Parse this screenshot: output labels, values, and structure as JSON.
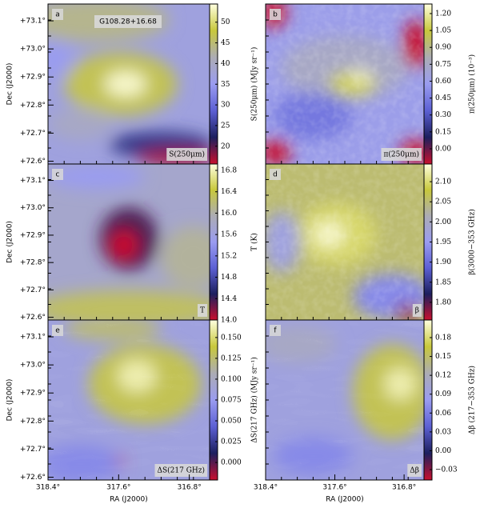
{
  "chart_data": [
    {
      "type": "heatmap",
      "letter": "a",
      "annotation": "G108.28+16.68",
      "box_label": "S(250μm)",
      "colors": [
        "#c8102e",
        "#1c1f5e",
        "#5c60d4",
        "#9a9cf0",
        "#acacb4",
        "#c8c83c",
        "#ffffe0"
      ],
      "colorbar": {
        "label": "S(250μm) (MJy sr⁻¹)",
        "lim": [
          15.7,
          54.4
        ],
        "ticks": [
          20,
          25,
          30,
          35,
          40,
          45,
          50
        ]
      },
      "yaxis": {
        "label": "Dec (J2000)",
        "lim": [
          72.59,
          73.16
        ],
        "ticks": [
          {
            "value": 72.6,
            "label": "+72.6°"
          },
          {
            "value": 72.7,
            "label": "+72.7°"
          },
          {
            "value": 72.8,
            "label": "+72.8°"
          },
          {
            "value": 72.9,
            "label": "+72.9°"
          },
          {
            "value": 73.0,
            "label": "+73.0°"
          },
          {
            "value": 73.1,
            "label": "+73.1°"
          }
        ]
      }
    },
    {
      "type": "heatmap",
      "letter": "b",
      "box_label": "π(250μm)",
      "colors": [
        "#c8102e",
        "#1c1f5e",
        "#5c60d4",
        "#9a9cf0",
        "#acacb4",
        "#c8c83c",
        "#ffffe0"
      ],
      "colorbar": {
        "label": "π(250μm) (10⁻³)",
        "lim": [
          -0.135,
          1.285
        ],
        "ticks": [
          {
            "value": 0,
            "label": "0.00"
          },
          0.15,
          {
            "value": 0.3,
            "label": "0.30"
          },
          0.45,
          {
            "value": 0.6,
            "label": "0.60"
          },
          0.75,
          {
            "value": 0.9,
            "label": "0.90"
          },
          1.05,
          {
            "value": 1.2,
            "label": "1.20"
          }
        ]
      }
    },
    {
      "type": "heatmap",
      "letter": "c",
      "box_label": "T",
      "colors": [
        "#c8102e",
        "#1c1f5e",
        "#5c60d4",
        "#9a9cf0",
        "#acacb4",
        "#c8c83c",
        "#ffffe0"
      ],
      "colorbar": {
        "label": "T (K)",
        "lim": [
          14.0,
          16.92
        ],
        "ticks": [
          {
            "value": 14,
            "label": "14.0"
          },
          14.4,
          14.8,
          15.2,
          15.6,
          {
            "value": 16,
            "label": "16.0"
          },
          16.4,
          16.8
        ]
      },
      "yaxis": {
        "label": "Dec (J2000)",
        "lim": [
          72.59,
          73.16
        ],
        "ticks": [
          {
            "value": 72.6,
            "label": "+72.6°"
          },
          {
            "value": 72.7,
            "label": "+72.7°"
          },
          {
            "value": 72.8,
            "label": "+72.8°"
          },
          {
            "value": 72.9,
            "label": "+72.9°"
          },
          {
            "value": 73.0,
            "label": "+73.0°"
          },
          {
            "value": 73.1,
            "label": "+73.1°"
          }
        ]
      }
    },
    {
      "type": "heatmap",
      "letter": "d",
      "box_label": "β",
      "colors": [
        "#c8102e",
        "#1c1f5e",
        "#5c60d4",
        "#9a9cf0",
        "#acacb4",
        "#c8c83c",
        "#ffffe0"
      ],
      "colorbar": {
        "label": "β(3000−353 GHz)",
        "lim": [
          1.756,
          2.144
        ],
        "ticks": [
          {
            "value": 1.8,
            "label": "1.80"
          },
          1.85,
          {
            "value": 1.9,
            "label": "1.90"
          },
          1.95,
          {
            "value": 2.0,
            "label": "2.00"
          },
          2.05,
          {
            "value": 2.1,
            "label": "2.10"
          }
        ]
      }
    },
    {
      "type": "heatmap",
      "letter": "e",
      "box_label": "ΔS(217 GHz)",
      "colors": [
        "#c8102e",
        "#1c1f5e",
        "#5c60d4",
        "#9a9cf0",
        "#acacb4",
        "#c8c83c",
        "#ffffe0"
      ],
      "colorbar": {
        "label": "ΔS(217 GHz) (MJy sr⁻¹)",
        "lim": [
          -0.021,
          0.171
        ],
        "ticks": [
          {
            "value": 0,
            "label": "0.000"
          },
          0.025,
          {
            "value": 0.05,
            "label": "0.050"
          },
          0.075,
          {
            "value": 0.1,
            "label": "0.100"
          },
          0.125,
          {
            "value": 0.15,
            "label": "0.150"
          }
        ]
      },
      "yaxis": {
        "label": "Dec (J2000)",
        "lim": [
          72.59,
          73.16
        ],
        "ticks": [
          {
            "value": 72.6,
            "label": "+72.6°"
          },
          {
            "value": 72.7,
            "label": "+72.7°"
          },
          {
            "value": 72.8,
            "label": "+72.8°"
          },
          {
            "value": 72.9,
            "label": "+72.9°"
          },
          {
            "value": 73.0,
            "label": "+73.0°"
          },
          {
            "value": 73.1,
            "label": "+73.1°"
          }
        ]
      },
      "xaxis": {
        "label": "RA (J2000)",
        "lim": [
          318.4,
          316.57
        ],
        "ticks": [
          {
            "value": 318.4,
            "label": "318.4°"
          },
          {
            "value": 317.6,
            "label": "317.6°"
          },
          {
            "value": 316.8,
            "label": "316.8°"
          }
        ]
      }
    },
    {
      "type": "heatmap",
      "letter": "f",
      "box_label": "Δβ",
      "colors": [
        "#c8102e",
        "#1c1f5e",
        "#5c60d4",
        "#9a9cf0",
        "#acacb4",
        "#c8c83c",
        "#ffffe0"
      ],
      "colorbar": {
        "label": "Δβ (217−353 GHz)",
        "lim": [
          -0.0465,
          0.208
        ],
        "ticks": [
          {
            "value": -0.03,
            "label": "−0.03"
          },
          {
            "value": 0,
            "label": "0.00"
          },
          0.03,
          0.06,
          0.09,
          0.12,
          0.15,
          0.18
        ]
      },
      "xaxis": {
        "label": "RA (J2000)",
        "lim": [
          318.4,
          316.57
        ],
        "ticks": [
          {
            "value": 318.4,
            "label": "318.4°"
          },
          {
            "value": 317.6,
            "label": "317.6°"
          },
          {
            "value": 316.8,
            "label": "316.8°"
          }
        ]
      }
    }
  ]
}
